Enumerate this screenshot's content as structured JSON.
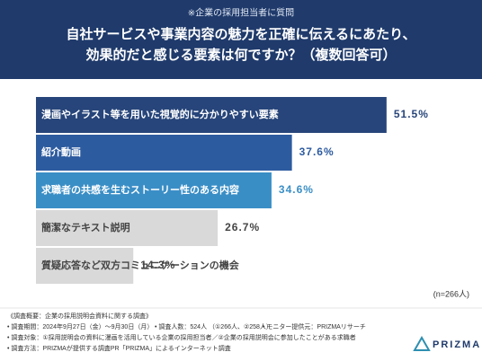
{
  "chart_data": {
    "type": "bar",
    "subtitle": "※企業の採用担当者に質問",
    "title_lines": [
      "自社サービスや事業内容の魅力を正確に伝えるにあたり、",
      "効果的だと感じる要素は何ですか？（複数回答可）"
    ],
    "categories": [
      "漫画やイラスト等を用いた視覚的に分かりやすい要素",
      "紹介動画",
      "求職者の共感を生むストーリー性のある内容",
      "簡潔なテキスト説明",
      "質疑応答など双方コミュニケーションの機会"
    ],
    "values": [
      51.5,
      37.6,
      34.6,
      26.7,
      14.3
    ],
    "value_labels": [
      "51.5%",
      "37.6%",
      "34.6%",
      "26.7%",
      "14.3%"
    ],
    "colors": [
      "#27457a",
      "#2d5b9f",
      "#3a8ec6",
      "#d9d9d9",
      "#d9d9d9"
    ],
    "value_label_colors": [
      "#27457a",
      "#2d5b9f",
      "#3a8ec6",
      "#444444",
      "#444444"
    ],
    "category_label_colors": [
      "#ffffff",
      "#ffffff",
      "#ffffff",
      "#444444",
      "#444444"
    ],
    "note": "(n=266人)"
  },
  "survey": {
    "lines": [
      "《調査概要：企業の採用説明会資料に関する調査》",
      "• 調査期間：2024年9月27日（金）～9月30日（月）",
      "• 調査人数：524人 （①266人、②258人）",
      "• モニター提供元：PRIZMAリサーチ",
      "• 調査対象：①採用説明会の資料に漫画を活用している企業の採用担当者／②企業の採用説明会に参加したことがある求職者",
      "• 調査方法：PRIZMAが提供する調査PR「PRIZMA」によるインターネット調査"
    ],
    "logo": "PRIZMA"
  }
}
